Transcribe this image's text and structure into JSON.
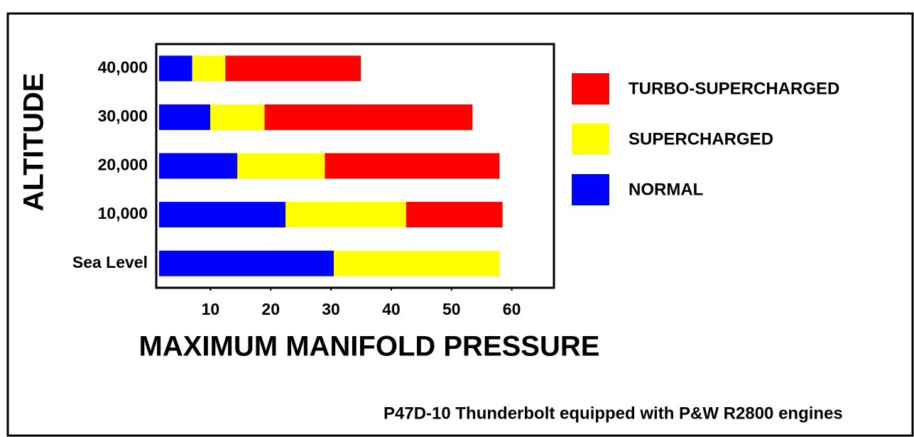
{
  "chart_data": {
    "type": "stacked_barh",
    "xlabel": "MAXIMUM MANIFOLD PRESSURE",
    "ylabel": "ALTITUDE",
    "note": "P47D-10 Thunderbolt equipped with P&W R2800 engines",
    "categories": [
      "40,000",
      "30,000",
      "20,000",
      "10,000",
      "Sea Level"
    ],
    "series": [
      {
        "name": "NORMAL",
        "color": "#0000ff",
        "values": [
          5.5,
          8.5,
          13,
          21,
          29
        ]
      },
      {
        "name": "SUPERCHARGED",
        "color": "#ffff00",
        "values": [
          5.5,
          9,
          14.5,
          20,
          27.5
        ]
      },
      {
        "name": "TURBO-SUPERCHARGED",
        "color": "#ff0000",
        "values": [
          22.5,
          34.5,
          29,
          16,
          0
        ]
      }
    ],
    "xlim": [
      1,
      67
    ],
    "xticks": [
      10,
      20,
      30,
      40,
      50,
      60
    ],
    "legend": "right"
  }
}
